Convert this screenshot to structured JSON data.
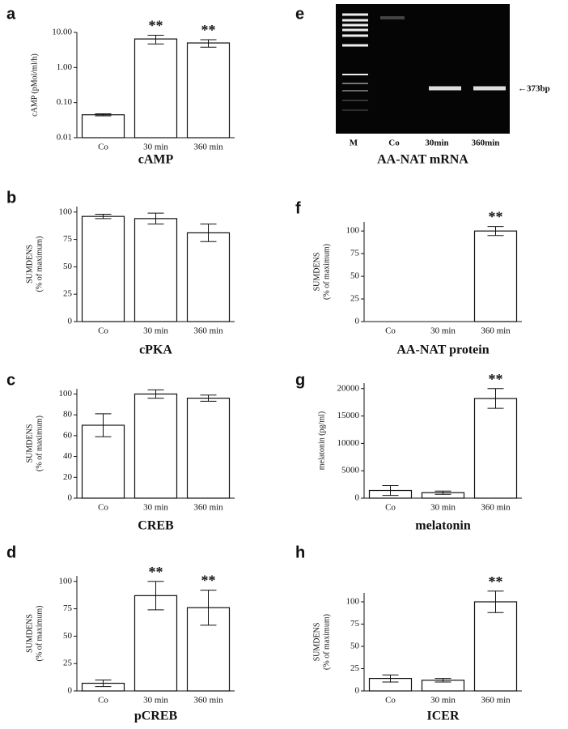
{
  "chart_data": [
    {
      "type": "bar",
      "panel": "a",
      "title": "cAMP",
      "ylabel": [
        "cAMP (pMol/ml/h)"
      ],
      "log_scale": true,
      "categories": [
        "Co",
        "30 min",
        "360 min"
      ],
      "values": [
        0.045,
        6.5,
        5.0
      ],
      "errors": [
        0.003,
        1.8,
        1.2
      ],
      "significance": [
        null,
        "**",
        "**"
      ],
      "ylim": [
        0.01,
        10
      ],
      "yticks": [
        0.01,
        {
          "value": 0.1,
          "label": "0.10"
        },
        {
          "value": 1,
          "label": "1.00"
        },
        {
          "value": 10,
          "label": "10.00"
        }
      ],
      "color": "#ffffff"
    },
    {
      "type": "bar",
      "panel": "b",
      "title": "cPKA",
      "ylabel": [
        "SUMDENS",
        "(% of maximum)"
      ],
      "categories": [
        "Co",
        "30 min",
        "360 min"
      ],
      "values": [
        96,
        94,
        81
      ],
      "errors": [
        2,
        5,
        8
      ],
      "significance": [
        null,
        null,
        null
      ],
      "ylim": [
        0,
        105
      ],
      "yticks": [
        0,
        25,
        50,
        75,
        100
      ],
      "color": "#ffffff"
    },
    {
      "type": "bar",
      "panel": "c",
      "title": "CREB",
      "ylabel": [
        "SUMDENS",
        "(% of maximum)"
      ],
      "categories": [
        "Co",
        "30 min",
        "360 min"
      ],
      "values": [
        70,
        100,
        96
      ],
      "errors": [
        11,
        4,
        3
      ],
      "significance": [
        null,
        null,
        null
      ],
      "ylim": [
        0,
        105
      ],
      "yticks": [
        0,
        20,
        40,
        60,
        80,
        100
      ],
      "color": "#ffffff"
    },
    {
      "type": "bar",
      "panel": "d",
      "title": "pCREB",
      "ylabel": [
        "SUMDENS",
        "(% of maximum)"
      ],
      "categories": [
        "Co",
        "30 min",
        "360 min"
      ],
      "values": [
        7,
        87,
        76
      ],
      "errors": [
        3,
        13,
        16
      ],
      "significance": [
        null,
        "**",
        "**"
      ],
      "ylim": [
        0,
        105
      ],
      "yticks": [
        0,
        25,
        50,
        75,
        100
      ],
      "color": "#ffffff"
    },
    {
      "type": "gel",
      "panel": "e",
      "title": "AA-NAT mRNA",
      "lanes": [
        "M",
        "Co",
        "30min",
        "360min"
      ],
      "band_label": "←373bp"
    },
    {
      "type": "bar",
      "panel": "f",
      "title": "AA-NAT protein",
      "ylabel": [
        "SUMDENS",
        "(% of maximum)"
      ],
      "categories": [
        "Co",
        "30 min",
        "360 min"
      ],
      "values": [
        0,
        0,
        100
      ],
      "errors": [
        0,
        0,
        5
      ],
      "significance": [
        null,
        null,
        "**"
      ],
      "ylim": [
        0,
        110
      ],
      "yticks": [
        0,
        25,
        50,
        75,
        100
      ],
      "color": "#ffffff"
    },
    {
      "type": "bar",
      "panel": "g",
      "title": "melatonin",
      "ylabel": [
        "melatonin (pg/ml)"
      ],
      "categories": [
        "Co",
        "30 min",
        "360 min"
      ],
      "values": [
        1400,
        1000,
        18200
      ],
      "errors": [
        900,
        300,
        1800
      ],
      "significance": [
        null,
        null,
        "**"
      ],
      "ylim": [
        0,
        21000
      ],
      "yticks": [
        0,
        5000,
        10000,
        15000,
        20000
      ],
      "color": "#ffffff"
    },
    {
      "type": "bar",
      "panel": "h",
      "title": "ICER",
      "ylabel": [
        "SUMDENS",
        "(% of maximum)"
      ],
      "categories": [
        "Co",
        "30 min",
        "360 min"
      ],
      "values": [
        14,
        12,
        100
      ],
      "errors": [
        4,
        2,
        12
      ],
      "significance": [
        null,
        null,
        "**"
      ],
      "ylim": [
        0,
        110
      ],
      "yticks": [
        0,
        25,
        50,
        75,
        100
      ],
      "color": "#ffffff"
    }
  ]
}
